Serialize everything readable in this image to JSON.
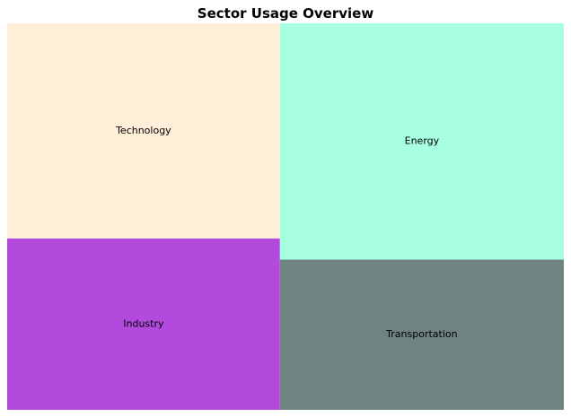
{
  "chart_data": {
    "type": "treemap",
    "title": "Sector Usage Overview",
    "categories": [
      "Technology",
      "Industry",
      "Energy",
      "Transportation"
    ],
    "values": [
      24.5,
      19.5,
      28.0,
      17.8
    ],
    "colors": [
      "#ffeed8",
      "#b24ade",
      "#a8ffe1",
      "#6e8382"
    ],
    "grid": false,
    "legend": "none"
  }
}
